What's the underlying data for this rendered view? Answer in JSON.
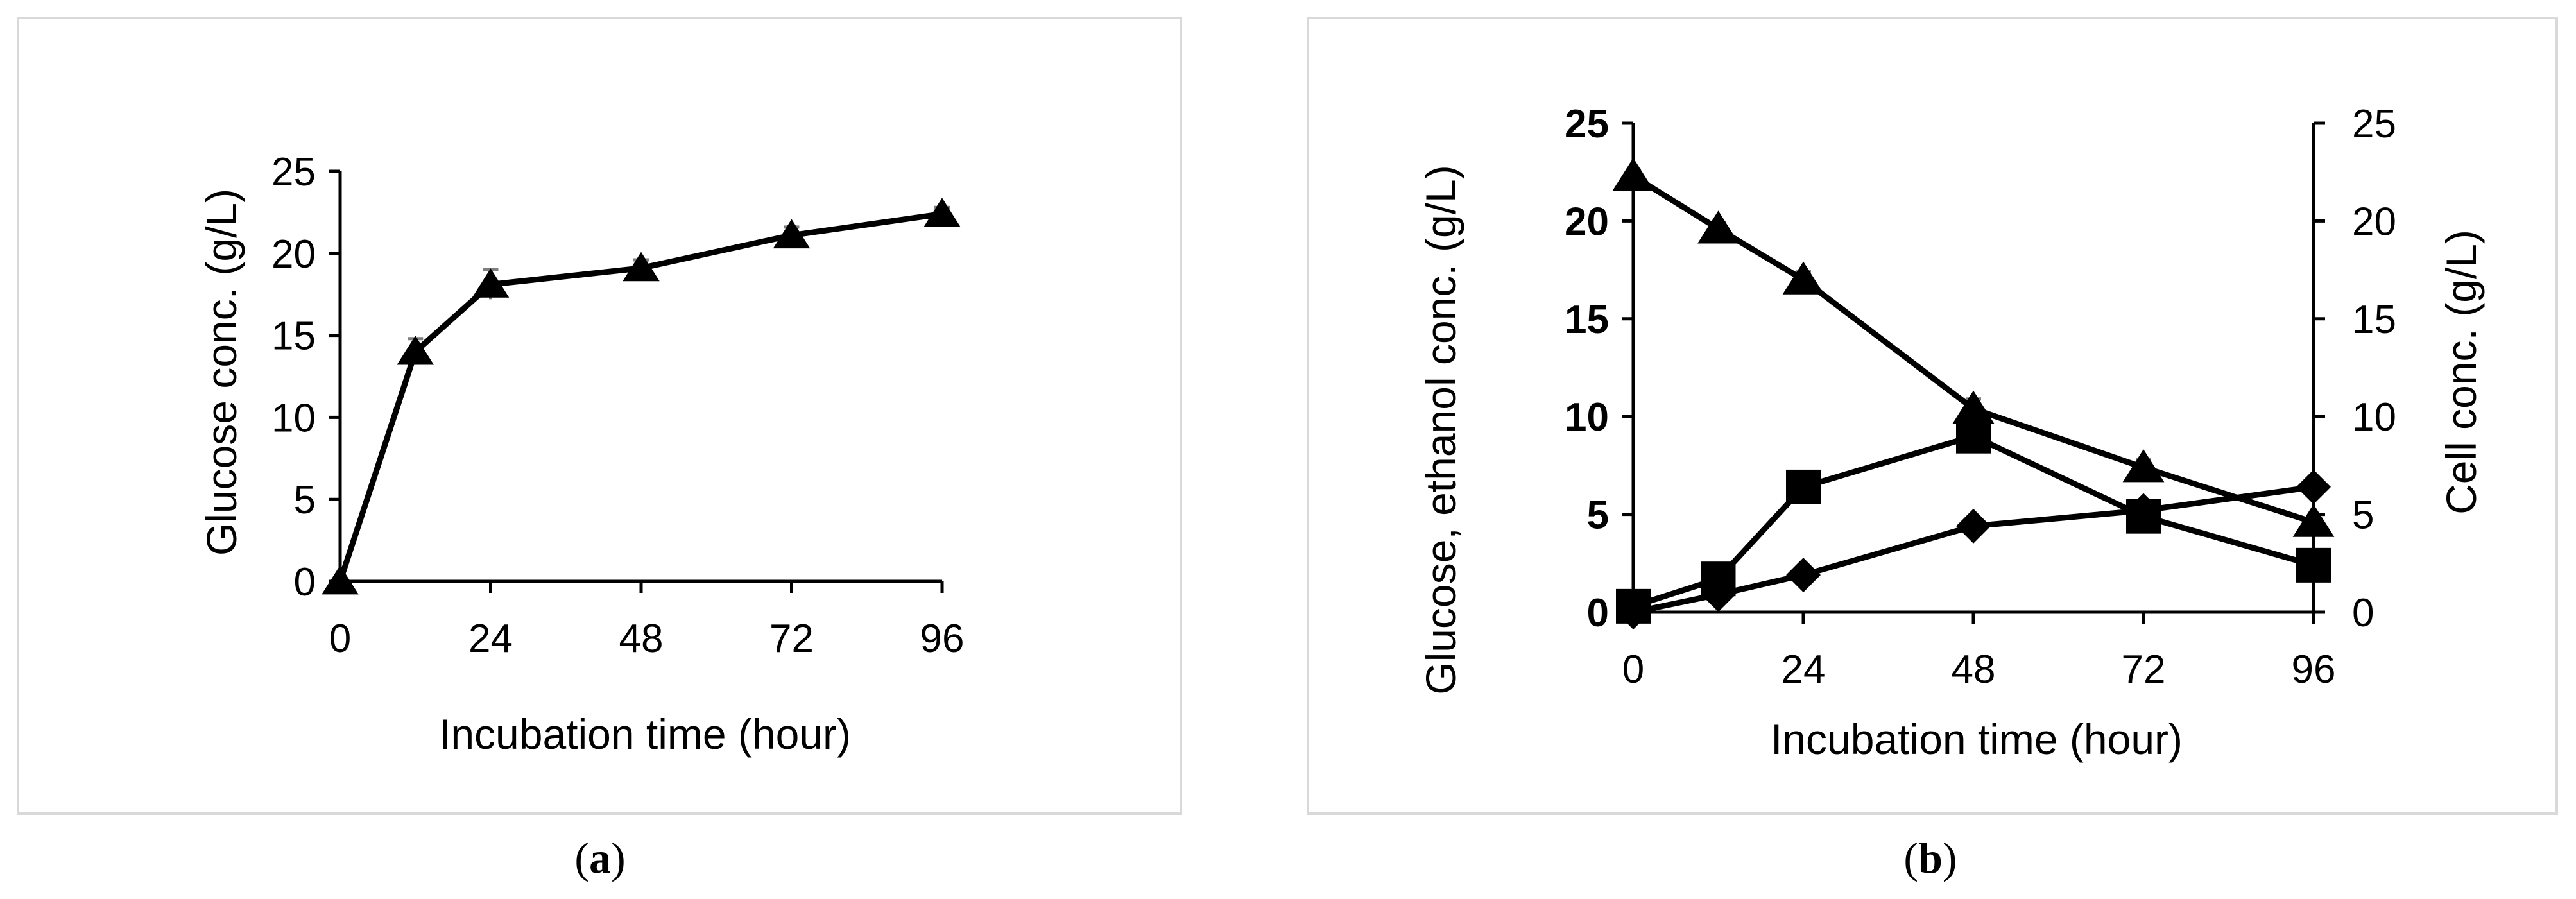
{
  "chart_data": [
    {
      "type": "line",
      "panel": "a",
      "x": [
        0,
        12,
        24,
        48,
        72,
        96
      ],
      "xlabel": "Incubation time (hour)",
      "ylabel": "Glucose conc. (g/L)",
      "xticks": [
        0,
        24,
        48,
        72,
        96
      ],
      "yticks": [
        0,
        5,
        10,
        15,
        20,
        25
      ],
      "xlim": [
        0,
        96
      ],
      "ylim": [
        0,
        25
      ],
      "series": [
        {
          "marker": "triangle",
          "values": [
            0,
            14.0,
            18.1,
            19.1,
            21.1,
            22.4
          ],
          "errors": [
            0,
            0.8,
            0.9,
            0.5,
            0.5,
            0.4
          ]
        }
      ]
    },
    {
      "type": "line",
      "panel": "b",
      "x": [
        0,
        12,
        24,
        48,
        72,
        96
      ],
      "xlabel": "Incubation time (hour)",
      "ylabel": "Glucose, ethanol conc. (g/L)",
      "y2label": "Cell conc. (g/L)",
      "xticks": [
        0,
        24,
        48,
        72,
        96
      ],
      "yticks": [
        0,
        5,
        10,
        15,
        20,
        25
      ],
      "xlim": [
        0,
        96
      ],
      "ylim": [
        0,
        25
      ],
      "y2lim": [
        0,
        25
      ],
      "series": [
        {
          "marker": "triangle",
          "axis": "left",
          "values": [
            22.3,
            19.6,
            17.0,
            10.4,
            7.4,
            4.6
          ],
          "errors": [
            0.3,
            0.3,
            0.4,
            0.5,
            0.4,
            0.3
          ]
        },
        {
          "marker": "square",
          "axis": "left",
          "values": [
            0.3,
            1.7,
            6.4,
            9.0,
            4.9,
            2.4
          ]
        },
        {
          "marker": "diamond",
          "axis": "right",
          "values": [
            0,
            0.9,
            1.9,
            4.4,
            5.2,
            6.4
          ]
        }
      ]
    }
  ],
  "captions": {
    "open": "(",
    "a": "a",
    "b": "b",
    "close": ")"
  }
}
